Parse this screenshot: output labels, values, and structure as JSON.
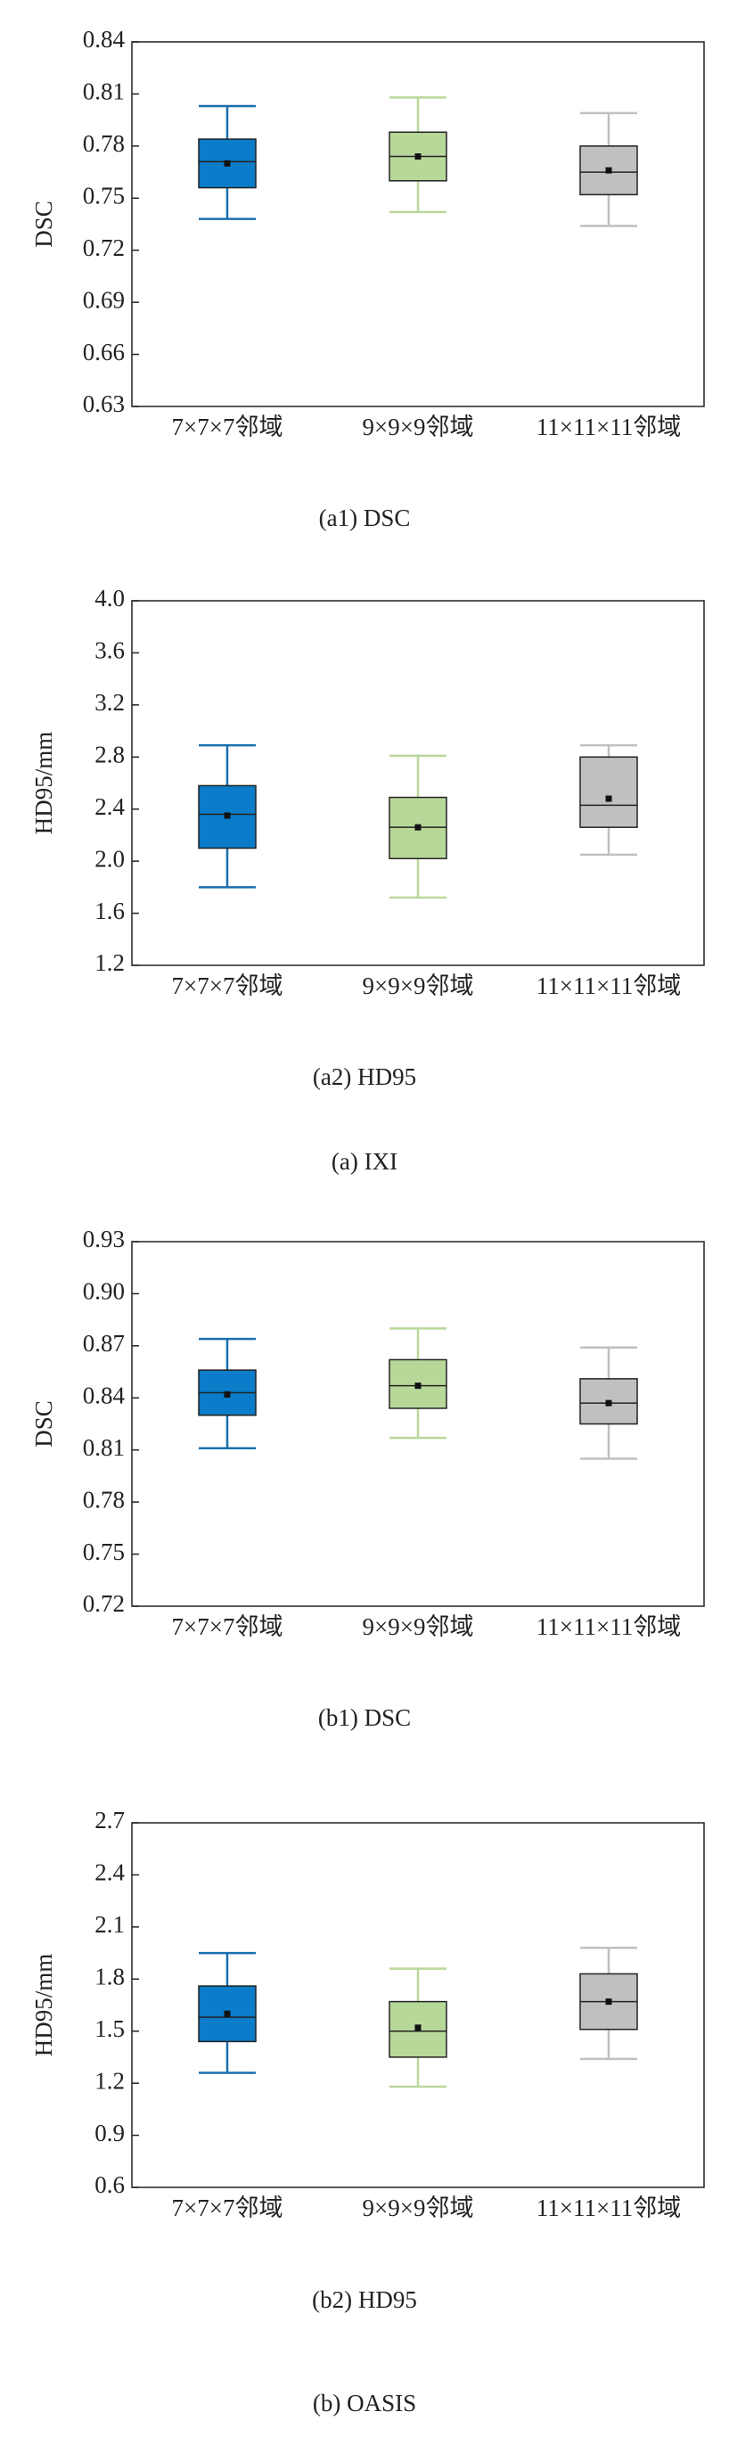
{
  "chart_data": [
    {
      "type": "box",
      "y_label": "DSC",
      "caption": "(a1) DSC",
      "categories": [
        "7×7×7邻域",
        "9×9×9邻域",
        "11×11×11邻域"
      ],
      "colors": [
        "#0a7cc9",
        "#b8d89a",
        "#c0c0c0"
      ],
      "min": [
        0.738,
        0.742,
        0.734
      ],
      "q1": [
        0.756,
        0.76,
        0.752
      ],
      "median": [
        0.771,
        0.774,
        0.765
      ],
      "mean": [
        0.77,
        0.774,
        0.766
      ],
      "q3": [
        0.784,
        0.788,
        0.78
      ],
      "max": [
        0.803,
        0.808,
        0.799
      ],
      "ylim": [
        0.63,
        0.84
      ],
      "yticks": [
        0.63,
        0.66,
        0.69,
        0.72,
        0.75,
        0.78,
        0.81,
        0.84
      ]
    },
    {
      "type": "box",
      "y_label": "HD95/mm",
      "caption": "(a2) HD95",
      "categories": [
        "7×7×7邻域",
        "9×9×9邻域",
        "11×11×11邻域"
      ],
      "colors": [
        "#0a7cc9",
        "#b8d89a",
        "#c0c0c0"
      ],
      "min": [
        1.8,
        1.72,
        2.05
      ],
      "q1": [
        2.1,
        2.02,
        2.26
      ],
      "median": [
        2.36,
        2.26,
        2.43
      ],
      "mean": [
        2.35,
        2.26,
        2.48
      ],
      "q3": [
        2.58,
        2.49,
        2.8
      ],
      "max": [
        2.89,
        2.81,
        2.89
      ],
      "ylim": [
        1.2,
        4.0
      ],
      "yticks": [
        1.2,
        1.6,
        {
          "value": 2,
          "label": "2.0"
        },
        2.4,
        2.8,
        3.2,
        3.6,
        {
          "value": 4,
          "label": "4.0"
        }
      ]
    },
    {
      "type": "box",
      "y_label": "DSC",
      "caption": "(b1) DSC",
      "categories": [
        "7×7×7邻域",
        "9×9×9邻域",
        "11×11×11邻域"
      ],
      "colors": [
        "#0a7cc9",
        "#b8d89a",
        "#c0c0c0"
      ],
      "min": [
        0.811,
        0.817,
        0.805
      ],
      "q1": [
        0.83,
        0.834,
        0.825
      ],
      "median": [
        0.843,
        0.847,
        0.837
      ],
      "mean": [
        0.842,
        0.847,
        0.837
      ],
      "q3": [
        0.856,
        0.862,
        0.851
      ],
      "max": [
        0.874,
        0.88,
        0.869
      ],
      "ylim": [
        0.72,
        0.93
      ],
      "yticks": [
        0.72,
        0.75,
        0.78,
        0.81,
        0.84,
        0.87,
        {
          "value": 0.9,
          "label": "0.90"
        },
        0.93
      ]
    },
    {
      "type": "box",
      "y_label": "HD95/mm",
      "caption": "(b2) HD95",
      "categories": [
        "7×7×7邻域",
        "9×9×9邻域",
        "11×11×11邻域"
      ],
      "colors": [
        "#0a7cc9",
        "#b8d89a",
        "#c0c0c0"
      ],
      "min": [
        1.26,
        1.18,
        1.34
      ],
      "q1": [
        1.44,
        1.35,
        1.51
      ],
      "median": [
        1.58,
        1.5,
        1.67
      ],
      "mean": [
        1.6,
        1.52,
        1.67
      ],
      "q3": [
        1.76,
        1.67,
        1.83
      ],
      "max": [
        1.95,
        1.86,
        1.98
      ],
      "ylim": [
        0.6,
        2.7
      ],
      "yticks": [
        0.6,
        0.9,
        1.2,
        1.5,
        1.8,
        2.1,
        2.4,
        2.7
      ]
    }
  ],
  "group_captions": [
    "(a) IXI",
    "(b) OASIS"
  ]
}
